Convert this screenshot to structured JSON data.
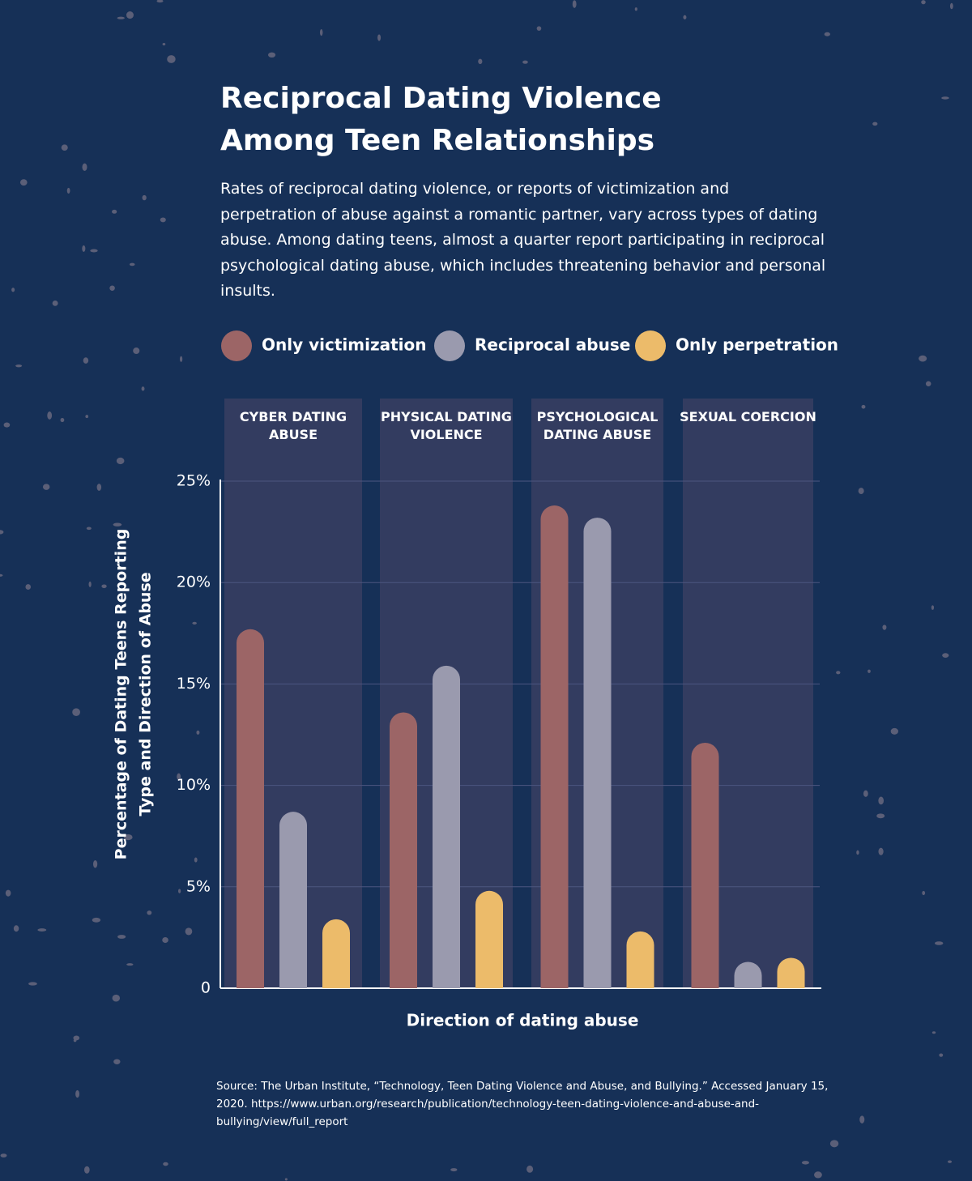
{
  "chart_data": {
    "type": "bar",
    "title_lines": [
      "Reciprocal Dating Violence",
      "Among Teen Relationships"
    ],
    "subtitle": "Rates of reciprocal dating violence, or reports of victimization and perpetration of abuse against a romantic partner, vary across types of dating abuse. Among dating teens, almost a quarter report participating in reciprocal psychological dating abuse, which includes threatening behavior and personal insults.",
    "categories": [
      "CYBER DATING ABUSE",
      "PHYSICAL DATING VIOLENCE",
      "PSYCHOLOGICAL DATING ABUSE",
      "SEXUAL COERCION"
    ],
    "series": [
      {
        "name": "Only victimization",
        "color": "#9c6566",
        "values": [
          17.7,
          13.6,
          23.8,
          12.1
        ]
      },
      {
        "name": "Reciprocal abuse",
        "color": "#9a9aae",
        "values": [
          8.7,
          15.9,
          23.2,
          1.3
        ]
      },
      {
        "name": "Only perpetration",
        "color": "#ecbb6a",
        "values": [
          3.4,
          4.8,
          2.8,
          1.5
        ]
      }
    ],
    "ylim": [
      0,
      25
    ],
    "yticks": [
      0,
      {
        "value": 5,
        "label": "5%"
      },
      {
        "value": 10,
        "label": "10%"
      },
      {
        "value": 15,
        "label": "15%"
      },
      {
        "value": 20,
        "label": "20%"
      },
      {
        "value": 25,
        "label": "25%"
      }
    ],
    "grid": true,
    "y_label_lines": [
      "Percentage of Dating Teens Reporting",
      "Type and Direction of Abuse"
    ],
    "x_label": "Direction of dating abuse",
    "source": "Source: The Urban Institute, “Technology, Teen Dating Violence and Abuse, and Bullying.” Accessed January 15, 2020. https://www.urban.org/research/publication/technology-teen-dating-violence-and-abuse-and-bullying/view/full_report"
  }
}
